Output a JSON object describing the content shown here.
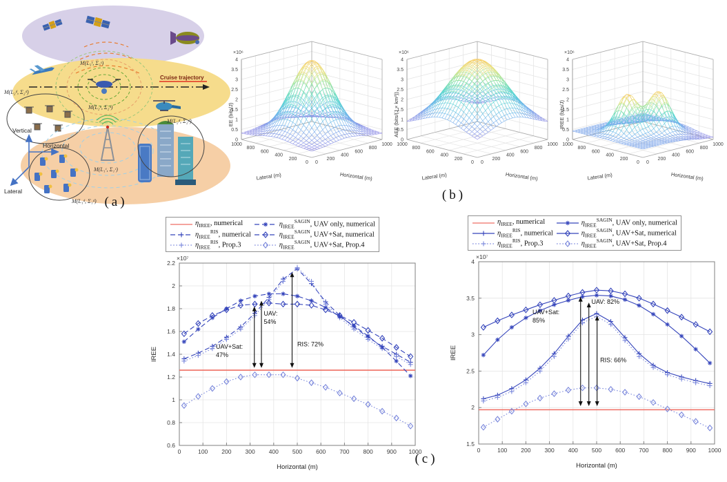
{
  "figure": {
    "captions": {
      "a": "(a)",
      "b": "(b)",
      "c": "(c)"
    }
  },
  "diagram": {
    "axes": {
      "vertical": "Vertical",
      "horizontal": "Horizontal",
      "lateral": "Lateral"
    },
    "cruise_label": "Cruise trajectory",
    "labels": {
      "satellite_layer": "M(L₃ˢ, Σ₃ˢ)",
      "uav_layer": "M(L₂ᵘ, Σ₂ᵘ)",
      "drone_swarm": "M(L₂ᵈ, Σ₂ᵈ)",
      "buildings": "M(L₂ᵈ, Σ₂ᵈ)",
      "base_station": "M(L₁ᶜ, Σ₁ᶜ)",
      "ground_users": "M(L₁ᵈ, Σ₁ᵈ)"
    }
  },
  "chart_data": [
    {
      "type": "surface",
      "name": "ee-surface",
      "zlabel": "EE (bits/J)",
      "xlabel": "Horizontal (m)",
      "ylabel": "Lateral (m)",
      "scale": "×10⁶",
      "zlim": [
        0,
        4
      ],
      "ztick_step": 0.5,
      "xticks": [
        0,
        200,
        400,
        600,
        800,
        1000
      ],
      "yticks": [
        0,
        200,
        400,
        600,
        800,
        1000
      ],
      "base": 0.3,
      "peaks": [
        {
          "amp": 3.65,
          "cx": 500,
          "cy": 500,
          "sigma": 215
        }
      ]
    },
    {
      "type": "surface",
      "name": "aee-surface",
      "zlabel": "AEE (bits/(J × km³))",
      "xlabel": "Horizontal (m)",
      "ylabel": "Lateral (m)",
      "scale": "×10⁶",
      "zlim": [
        0,
        4
      ],
      "ztick_step": 0.5,
      "xticks": [
        0,
        200,
        400,
        600,
        800,
        1000
      ],
      "yticks": [
        0,
        200,
        400,
        600,
        800,
        1000
      ],
      "base": 0.7,
      "peaks": [
        {
          "amp": 3.3,
          "cx": 500,
          "cy": 500,
          "sigma": 300
        }
      ]
    },
    {
      "type": "surface",
      "name": "iree-surface",
      "zlabel": "IREE (bits/J)",
      "xlabel": "Horizontal (m)",
      "ylabel": "Lateral (m)",
      "scale": "×10⁶",
      "zlim": [
        0,
        4
      ],
      "ztick_step": 0.5,
      "xticks": [
        0,
        200,
        400,
        600,
        800,
        1000
      ],
      "yticks": [
        0,
        200,
        400,
        600,
        800,
        1000
      ],
      "base": 0.42,
      "peaks": [
        {
          "amp": 1.92,
          "cx": 340,
          "cy": 560,
          "sigma": 115
        },
        {
          "amp": 1.92,
          "cx": 660,
          "cy": 430,
          "sigma": 115
        },
        {
          "amp": -0.3,
          "cx": 1000,
          "cy": 0,
          "sigma": 260
        }
      ]
    },
    {
      "type": "line",
      "name": "iree-vs-horizontal-dashed",
      "xlabel": "Horizontal (m)",
      "ylabel": "IREE",
      "scale": "×10⁷",
      "xlim": [
        0,
        1000
      ],
      "ylim": [
        0.6,
        2.2
      ],
      "xticks": [
        0,
        100,
        200,
        300,
        400,
        500,
        600,
        700,
        800,
        900,
        1000
      ],
      "yticks": [
        0.6,
        0.8,
        1.0,
        1.2,
        1.4,
        1.6,
        1.8,
        2.0,
        2.2
      ],
      "x": [
        20,
        80,
        140,
        200,
        260,
        320,
        380,
        440,
        500,
        560,
        620,
        680,
        740,
        800,
        860,
        920,
        980
      ],
      "series": [
        {
          "label": "η_{IREE}, numerical",
          "color": "#ef6e63",
          "dash": "solid",
          "marker": "none",
          "const": 1.26
        },
        {
          "label": "η_{IREE}^{RIS}, numerical",
          "color": "#3444bb",
          "dash": "dashed",
          "marker": "plus",
          "values": [
            1.36,
            1.41,
            1.47,
            1.55,
            1.64,
            1.76,
            1.9,
            2.06,
            2.15,
            2.02,
            1.86,
            1.74,
            1.64,
            1.55,
            1.47,
            1.4,
            1.33
          ]
        },
        {
          "label": "η_{IREE}^{RIS}, Prop.3",
          "color": "#7b88dc",
          "dash": "dotted",
          "marker": "plus",
          "values": [
            1.34,
            1.39,
            1.45,
            1.53,
            1.62,
            1.74,
            1.88,
            2.04,
            2.16,
            2.04,
            1.84,
            1.72,
            1.62,
            1.53,
            1.45,
            1.38,
            1.31
          ]
        },
        {
          "label": "η_{IREE}^{SAGIN}, UAV only, numerical",
          "color": "#3444bb",
          "dash": "dashed",
          "marker": "star",
          "values": [
            1.51,
            1.62,
            1.72,
            1.8,
            1.87,
            1.91,
            1.93,
            1.93,
            1.91,
            1.87,
            1.81,
            1.73,
            1.65,
            1.56,
            1.46,
            1.34,
            1.21
          ]
        },
        {
          "label": "η_{IREE}^{SAGIN}, UAV+Sat, numerical",
          "color": "#3444bb",
          "dash": "dashed",
          "marker": "diamond",
          "values": [
            1.58,
            1.67,
            1.74,
            1.79,
            1.83,
            1.84,
            1.85,
            1.84,
            1.84,
            1.83,
            1.79,
            1.74,
            1.68,
            1.61,
            1.54,
            1.46,
            1.38
          ]
        },
        {
          "label": "η_{IREE}^{SAGIN}, UAV+Sat, Prop.4",
          "color": "#7b88dc",
          "dash": "dotted",
          "marker": "diamond",
          "values": [
            0.95,
            1.03,
            1.1,
            1.16,
            1.2,
            1.22,
            1.22,
            1.22,
            1.19,
            1.15,
            1.11,
            1.06,
            1.01,
            0.96,
            0.9,
            0.84,
            0.77
          ]
        }
      ],
      "annotations": [
        {
          "text": "UAV+Sat:\n47%",
          "x": 155,
          "y": 1.45
        },
        {
          "text": "UAV:\n54%",
          "x": 358,
          "y": 1.74
        },
        {
          "text": "RIS: 72%",
          "x": 500,
          "y": 1.47
        }
      ],
      "arrows": [
        {
          "x": 318,
          "y1": 1.28,
          "y2": 1.82
        },
        {
          "x": 348,
          "y1": 1.28,
          "y2": 1.87
        },
        {
          "x": 478,
          "y1": 1.28,
          "y2": 2.12
        }
      ]
    },
    {
      "type": "line",
      "name": "iree-vs-horizontal-solid",
      "xlabel": "Horizontal (m)",
      "ylabel": "IREE",
      "scale": "×10⁷",
      "xlim": [
        0,
        1000
      ],
      "ylim": [
        1.5,
        4.0
      ],
      "xticks": [
        0,
        100,
        200,
        300,
        400,
        500,
        600,
        700,
        800,
        900,
        1000
      ],
      "yticks": [
        1.5,
        2.0,
        2.5,
        3.0,
        3.5,
        4.0
      ],
      "x": [
        20,
        80,
        140,
        200,
        260,
        320,
        380,
        440,
        500,
        560,
        620,
        680,
        740,
        800,
        860,
        920,
        980
      ],
      "series": [
        {
          "label": "η_{IREE}, numerical",
          "color": "#ef6e63",
          "dash": "solid",
          "marker": "none",
          "const": 1.97
        },
        {
          "label": "η_{IREE}^{RIS}, numerical",
          "color": "#3444bb",
          "dash": "solid",
          "marker": "plus",
          "values": [
            2.12,
            2.17,
            2.26,
            2.38,
            2.54,
            2.74,
            2.98,
            3.2,
            3.29,
            3.18,
            2.96,
            2.74,
            2.58,
            2.48,
            2.42,
            2.37,
            2.33
          ]
        },
        {
          "label": "η_{IREE}^{RIS}, Prop.3",
          "color": "#7b88dc",
          "dash": "dotted",
          "marker": "plus",
          "values": [
            2.09,
            2.14,
            2.22,
            2.34,
            2.5,
            2.7,
            2.94,
            3.16,
            3.25,
            3.14,
            2.92,
            2.7,
            2.55,
            2.45,
            2.39,
            2.34,
            2.3
          ]
        },
        {
          "label": "η_{IREE}^{SAGIN}, UAV only, numerical",
          "color": "#3444bb",
          "dash": "solid",
          "marker": "star",
          "values": [
            2.72,
            2.93,
            3.1,
            3.23,
            3.33,
            3.41,
            3.47,
            3.52,
            3.54,
            3.53,
            3.48,
            3.4,
            3.28,
            3.14,
            2.98,
            2.8,
            2.61
          ]
        },
        {
          "label": "η_{IREE}^{SAGIN}, UAV+Sat, numerical",
          "color": "#3444bb",
          "dash": "solid",
          "marker": "diamond",
          "values": [
            3.1,
            3.19,
            3.27,
            3.34,
            3.41,
            3.47,
            3.53,
            3.58,
            3.61,
            3.6,
            3.56,
            3.5,
            3.42,
            3.33,
            3.24,
            3.14,
            3.04
          ]
        },
        {
          "label": "η_{IREE}^{SAGIN}, UAV+Sat, Prop.4",
          "color": "#7b88dc",
          "dash": "dotted",
          "marker": "diamond",
          "values": [
            1.73,
            1.84,
            1.95,
            2.05,
            2.13,
            2.19,
            2.24,
            2.27,
            2.27,
            2.25,
            2.21,
            2.15,
            2.07,
            1.98,
            1.9,
            1.81,
            1.72
          ]
        }
      ],
      "annotations": [
        {
          "text": "UAV+Sat:\n85%",
          "x": 228,
          "y": 3.28
        },
        {
          "text": "UAV: 82%",
          "x": 478,
          "y": 3.42
        },
        {
          "text": "RIS: 66%",
          "x": 515,
          "y": 2.62
        }
      ],
      "arrows": [
        {
          "x": 432,
          "y1": 2.02,
          "y2": 3.52
        },
        {
          "x": 467,
          "y1": 2.02,
          "y2": 3.44
        },
        {
          "x": 502,
          "y1": 2.02,
          "y2": 3.26
        }
      ]
    }
  ]
}
